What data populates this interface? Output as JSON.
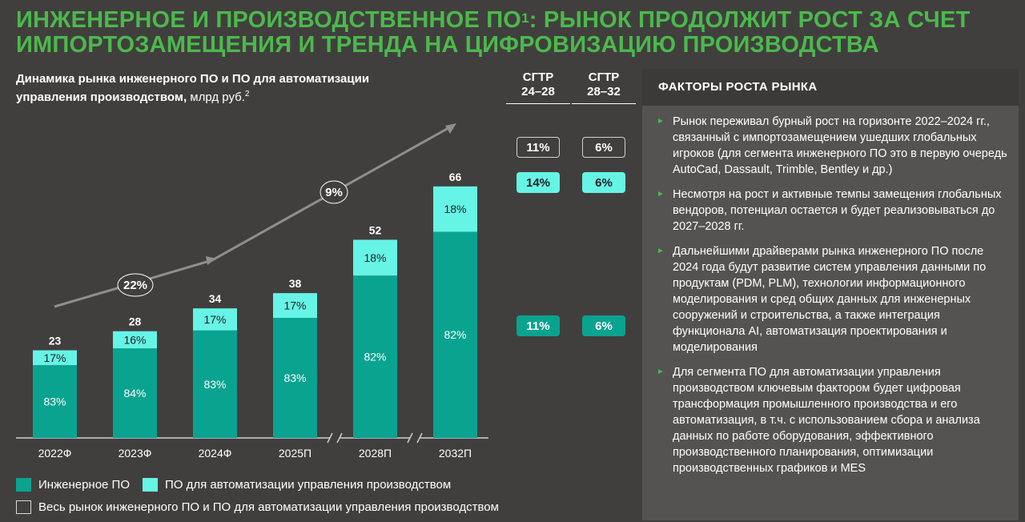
{
  "title": {
    "part1": "ИНЖЕНЕРНОЕ И ПРОИЗВОДСТВЕННОЕ ПО",
    "sup": "1",
    "part2": ": РЫНОК ПРОДОЛЖИТ РОСТ ЗА СЧЕТ ИМПОРТОЗАМЕЩЕНИЯ И ТРЕНДА НА ЦИФРОВИЗАЦИЮ ПРОИЗВОДСТВА"
  },
  "subtitle": {
    "bold": "Динамика рынка инженерного ПО и ПО для автоматизации управления производством,",
    "normal": " млрд руб.",
    "sup": "2"
  },
  "cagr": {
    "headers": [
      {
        "line1": "CГТР",
        "line2": "24–28"
      },
      {
        "line1": "CГТР",
        "line2": "28–32"
      }
    ],
    "total": [
      "11%",
      "6%"
    ],
    "automation": [
      "14%",
      "6%"
    ],
    "engineering": [
      "11%",
      "6%"
    ]
  },
  "chart_data": {
    "type": "bar",
    "stacked": true,
    "categories": [
      "2022Ф",
      "2023Ф",
      "2024Ф",
      "2025П",
      "2028П",
      "2032П"
    ],
    "totals": [
      23,
      28,
      34,
      38,
      52,
      66
    ],
    "series": [
      {
        "name": "Инженерное ПО",
        "color": "#0aa38f",
        "values": [
          19.1,
          23.5,
          28.2,
          31.5,
          42.6,
          54.1
        ],
        "share_labels": [
          "83%",
          "84%",
          "83%",
          "83%",
          "82%",
          "82%"
        ]
      },
      {
        "name": "ПО для автоматизации управления производством",
        "color": "#66f4e6",
        "values": [
          3.9,
          4.5,
          5.8,
          6.5,
          9.4,
          11.9
        ],
        "share_labels": [
          "17%",
          "16%",
          "17%",
          "17%",
          "18%",
          "18%"
        ]
      }
    ],
    "axis_breaks_before": [
      "2028П",
      "2032П"
    ],
    "ylim": [
      0,
      66
    ],
    "trend": {
      "labels": [
        "22%",
        "9%"
      ]
    }
  },
  "legend": [
    {
      "label": "Инженерное ПО",
      "color": "#0aa38f"
    },
    {
      "label": "ПО для автоматизации управления производством",
      "color": "#66f4e6"
    },
    {
      "label": "Весь рынок инженерного ПО и ПО для автоматизации управления производством",
      "color": "outline"
    }
  ],
  "factors": {
    "title": "ФАКТОРЫ РОСТА РЫНКА",
    "bullet_icon": "triangle-right-icon",
    "items": [
      "Рынок переживал бурный рост на горизонте 2022–2024 гг., связанный с импортозамещением ушедших глобальных игроков (для сегмента инженерного ПО это в первую очередь AutoCad, Dassault, Trimble, Bentley и др.)",
      "Несмотря на рост и активные темпы замещения глобальных вендоров, потенциал остается и будет реализовываться до 2027–2028 гг.",
      "Дальнейшими драйверами рынка инженерного ПО после 2024 года будут развитие систем управления данными по продуктам (PDM, PLM), технологии информационного моделирования и сред общих данных для инженерных сооружений и строительства, а также интеграция функционала AI, автоматизация проектирования и моделирования",
      "Для сегмента ПО для автоматизации управления производством ключевым фактором будет цифровая трансформация промышленного производства и его автоматизация, в т.ч. с использованием сбора и анализа данных по работе оборудования, эффективного производственного планирования, оптимизации производственных графиков и MES"
    ]
  }
}
